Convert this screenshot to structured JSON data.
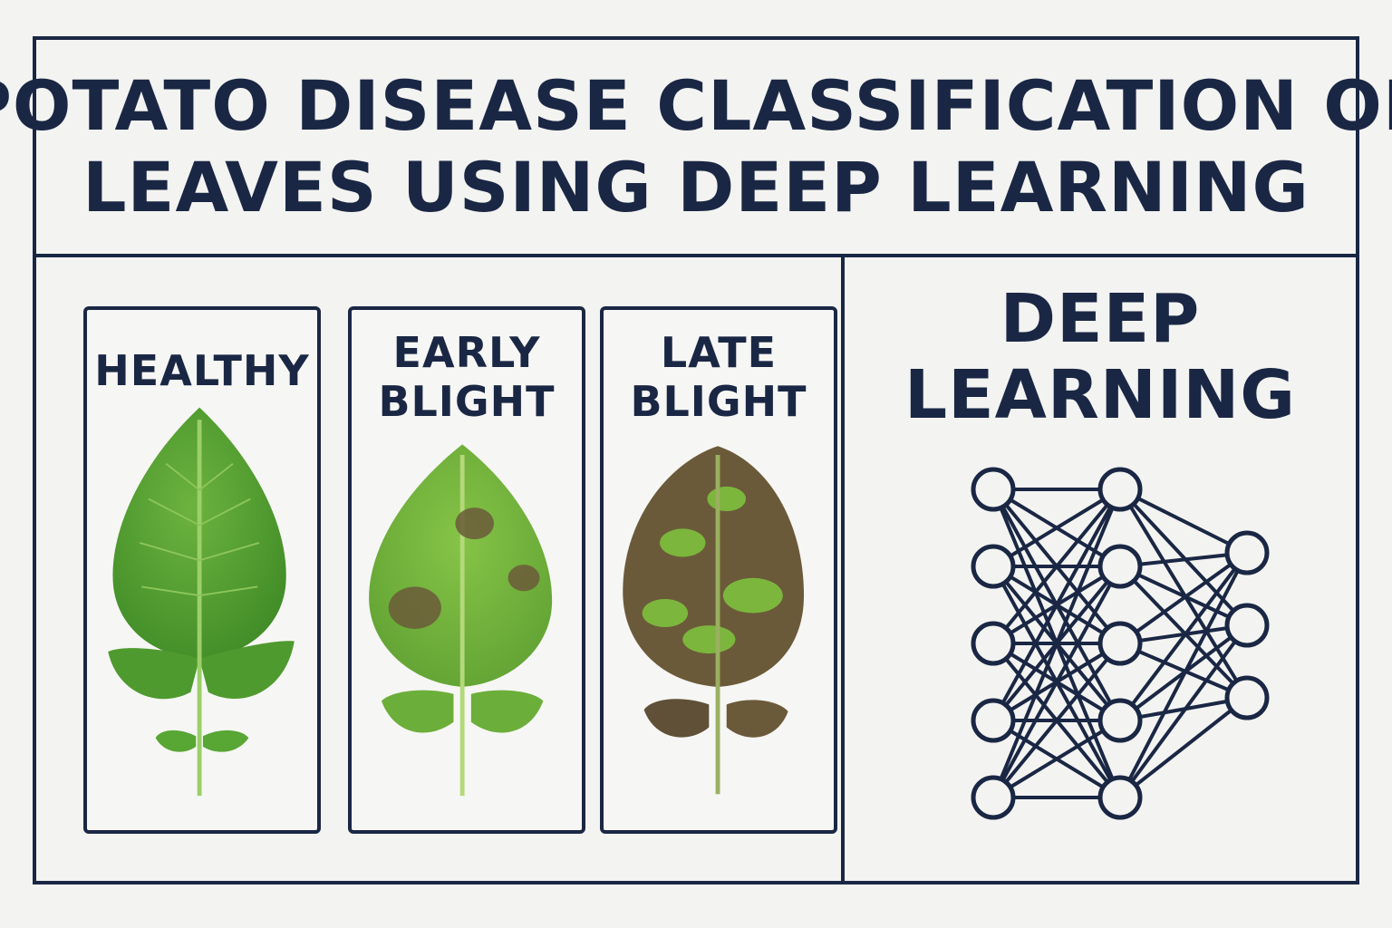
{
  "title": {
    "line1": "POTATO DISEASE CLASSIFICATION OF",
    "line2": "LEAVES USING DEEP LEARNING"
  },
  "cards": [
    {
      "line1": "HEALTHY",
      "line2": ""
    },
    {
      "line1": "EARLY",
      "line2": "BLIGHT"
    },
    {
      "line1": "LATE",
      "line2": "BLIGHT"
    }
  ],
  "deep_learning": {
    "line1": "DEEP",
    "line2": "LEARNING"
  },
  "network": {
    "layers": [
      5,
      5,
      3
    ]
  },
  "colors": {
    "navy": "#1a2744",
    "leaf_green": "#5a9e32",
    "blight_brown": "#6b5a3a"
  }
}
